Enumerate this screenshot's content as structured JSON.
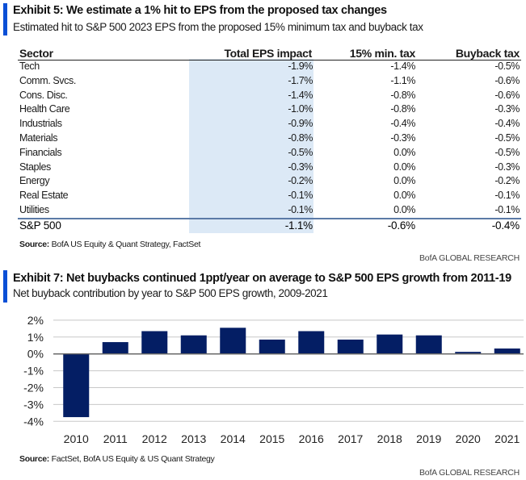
{
  "exhibit5": {
    "title": "Exhibit 5: We estimate a 1% hit to EPS from the proposed tax changes",
    "subtitle": "Estimated hit to S&P 500 2023 EPS from the proposed 15% minimum tax and buyback tax",
    "columns": [
      "Sector",
      "Total EPS impact",
      "15% min. tax",
      "Buyback tax"
    ],
    "rows": [
      {
        "sector": "Tech",
        "total": "-1.9%",
        "min_tax": "-1.4%",
        "buyback": "-0.5%"
      },
      {
        "sector": "Comm. Svcs.",
        "total": "-1.7%",
        "min_tax": "-1.1%",
        "buyback": "-0.6%"
      },
      {
        "sector": "Cons. Disc.",
        "total": "-1.4%",
        "min_tax": "-0.8%",
        "buyback": "-0.6%"
      },
      {
        "sector": "Health Care",
        "total": "-1.0%",
        "min_tax": "-0.8%",
        "buyback": "-0.3%"
      },
      {
        "sector": "Industrials",
        "total": "-0.9%",
        "min_tax": "-0.4%",
        "buyback": "-0.4%"
      },
      {
        "sector": "Materials",
        "total": "-0.8%",
        "min_tax": "-0.3%",
        "buyback": "-0.5%"
      },
      {
        "sector": "Financials",
        "total": "-0.5%",
        "min_tax": "0.0%",
        "buyback": "-0.5%"
      },
      {
        "sector": "Staples",
        "total": "-0.3%",
        "min_tax": "0.0%",
        "buyback": "-0.3%"
      },
      {
        "sector": "Energy",
        "total": "-0.2%",
        "min_tax": "0.0%",
        "buyback": "-0.2%"
      },
      {
        "sector": "Real Estate",
        "total": "-0.1%",
        "min_tax": "0.0%",
        "buyback": "-0.1%"
      },
      {
        "sector": "Utilities",
        "total": "-0.1%",
        "min_tax": "0.0%",
        "buyback": "-0.1%"
      }
    ],
    "total_row": {
      "sector": "S&P 500",
      "total": "-1.1%",
      "min_tax": "-0.6%",
      "buyback": "-0.4%"
    },
    "source_label": "Source:",
    "source_text": "BofA US Equity & Quant Strategy, FactSet",
    "brand": "BofA GLOBAL RESEARCH"
  },
  "exhibit7": {
    "title": "Exhibit 7: Net buybacks continued 1ppt/year on average to S&P 500 EPS growth from 2011-19",
    "subtitle": "Net buyback contribution by year to S&P 500 EPS growth, 2009-2021",
    "source_label": "Source:",
    "source_text": "FactSet, BofA US Equity & US Quant Strategy",
    "brand": "BofA GLOBAL RESEARCH"
  },
  "colors": {
    "accent_bar": "#0a4fd6",
    "bar_fill": "#041e64",
    "shade": "#dce9f6",
    "total_rule": "#5b7aa6",
    "grid": "#c8c8c8"
  },
  "chart_data": {
    "type": "bar",
    "title": "Exhibit 7: Net buybacks continued 1ppt/year on average to S&P 500 EPS growth from 2011-19",
    "subtitle": "Net buyback contribution by year to S&P 500 EPS growth, 2009-2021",
    "categories": [
      "2010",
      "2011",
      "2012",
      "2013",
      "2014",
      "2015",
      "2016",
      "2017",
      "2018",
      "2019",
      "2020",
      "2021"
    ],
    "values": [
      -3.75,
      0.7,
      1.35,
      1.1,
      1.55,
      0.85,
      1.35,
      0.85,
      1.15,
      1.1,
      0.12,
      0.32
    ],
    "unit": "%",
    "xlabel": "",
    "ylabel": "",
    "ylim": [
      -4,
      2
    ],
    "yticks": [
      2,
      1,
      0,
      -1,
      -2,
      -3,
      -4
    ],
    "ytick_labels": [
      "2%",
      "1%",
      "0%",
      "-1%",
      "-2%",
      "-3%",
      "-4%"
    ],
    "grid": true,
    "legend": "none"
  }
}
